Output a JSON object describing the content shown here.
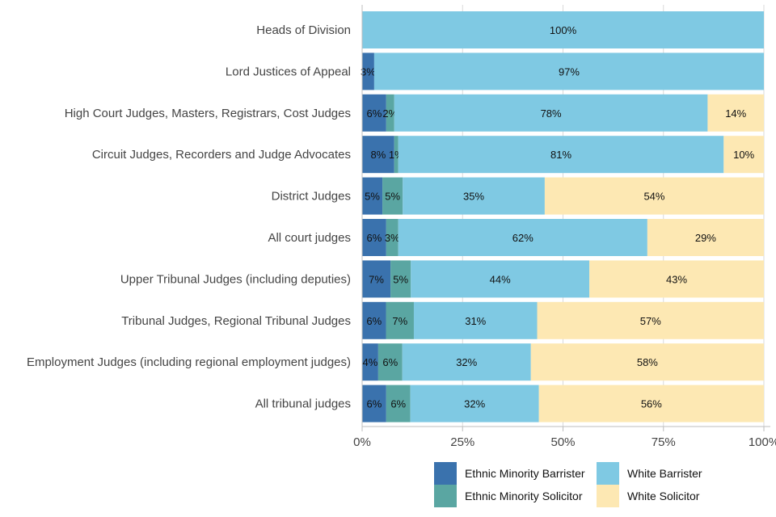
{
  "chart_data": {
    "type": "bar",
    "orientation": "horizontal",
    "stacked": true,
    "title": "",
    "xlabel": "",
    "ylabel": "",
    "xlim": [
      0,
      100
    ],
    "x_ticks": [
      "0%",
      "25%",
      "50%",
      "75%",
      "100%"
    ],
    "grid": true,
    "legend_position": "bottom-right",
    "categories": [
      "Heads of Division",
      "Lord Justices of Appeal",
      "High Court Judges, Masters, Registrars, Cost Judges",
      "Circuit Judges, Recorders and Judge Advocates",
      "District Judges",
      "All court judges",
      "Upper Tribunal Judges (including deputies)",
      "Tribunal Judges, Regional Tribunal Judges",
      "Employment Judges (including regional employment judges)",
      "All tribunal judges"
    ],
    "series": [
      {
        "name": "Ethnic Minority Barrister",
        "color": "#3a72ad",
        "values": [
          0,
          3,
          6,
          8,
          5,
          6,
          7,
          6,
          4,
          6
        ],
        "labels": [
          "",
          "3%",
          "6%",
          "8%",
          "5%",
          "6%",
          "7%",
          "6%",
          "4%",
          "6%"
        ]
      },
      {
        "name": "Ethnic Minority Solicitor",
        "color": "#5aa6a2",
        "values": [
          0,
          0,
          2,
          1,
          5,
          3,
          5,
          7,
          6,
          6
        ],
        "labels": [
          "",
          "",
          "2%",
          "1%",
          "5%",
          "3%",
          "5%",
          "7%",
          "6%",
          "6%"
        ]
      },
      {
        "name": "White Barrister",
        "color": "#7fc9e3",
        "values": [
          100,
          97,
          78,
          81,
          35,
          62,
          44,
          31,
          32,
          32
        ],
        "labels": [
          "100%",
          "97%",
          "78%",
          "81%",
          "35%",
          "62%",
          "44%",
          "31%",
          "32%",
          "32%"
        ]
      },
      {
        "name": "White Solicitor",
        "color": "#fde8b3",
        "values": [
          0,
          0,
          14,
          10,
          54,
          29,
          43,
          57,
          58,
          56
        ],
        "labels": [
          "",
          "",
          "14%",
          "10%",
          "54%",
          "29%",
          "43%",
          "57%",
          "58%",
          "56%"
        ]
      }
    ]
  }
}
